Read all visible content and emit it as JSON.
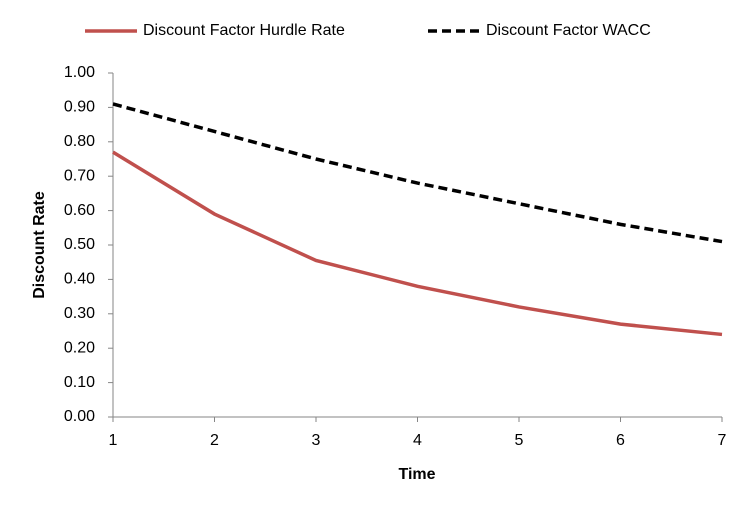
{
  "chart_data": {
    "type": "line",
    "x_label": "Time",
    "y_label": "Discount Rate",
    "x": [
      1,
      2,
      3,
      4,
      5,
      6,
      7
    ],
    "series": [
      {
        "name": "Discount Factor Hurdle Rate",
        "color": "#c0504d",
        "dash": "solid",
        "values": [
          0.77,
          0.59,
          0.455,
          0.38,
          0.32,
          0.27,
          0.24
        ]
      },
      {
        "name": "Discount Factor WACC",
        "color": "#000000",
        "dash": "dashed",
        "values": [
          0.91,
          0.83,
          0.75,
          0.68,
          0.62,
          0.56,
          0.51
        ]
      }
    ],
    "xlim": [
      1,
      7
    ],
    "xticks": [
      1,
      2,
      3,
      4,
      5,
      6,
      7
    ],
    "ylim": [
      0,
      1
    ],
    "yticks": [
      {
        "value": 0,
        "label": "0.00"
      },
      {
        "value": 0.1,
        "label": "0.10"
      },
      {
        "value": 0.2,
        "label": "0.20"
      },
      {
        "value": 0.3,
        "label": "0.30"
      },
      {
        "value": 0.4,
        "label": "0.40"
      },
      {
        "value": 0.5,
        "label": "0.50"
      },
      {
        "value": 0.6,
        "label": "0.60"
      },
      {
        "value": 0.7,
        "label": "0.70"
      },
      {
        "value": 0.8,
        "label": "0.80"
      },
      {
        "value": 0.9,
        "label": "0.90"
      },
      {
        "value": 1,
        "label": "1.00"
      }
    ],
    "grid": false,
    "legend": "top"
  }
}
